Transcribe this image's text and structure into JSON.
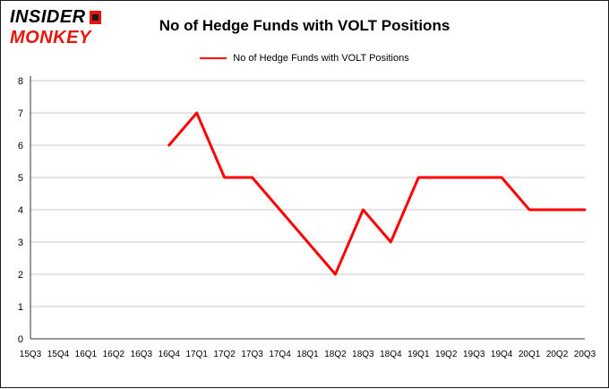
{
  "logo": {
    "line1": "INSIDER",
    "line2": "MONKEY"
  },
  "colors": {
    "logo_red": "#e8140c",
    "series_red": "#ff0000",
    "gridline": "#c9c9c9",
    "axis": "#333333",
    "text": "#000000"
  },
  "chart_data": {
    "type": "line",
    "title": "No of Hedge Funds with VOLT Positions",
    "xlabel": "",
    "ylabel": "",
    "ylim": [
      0,
      8
    ],
    "y_ticks": [
      0,
      1,
      2,
      3,
      4,
      5,
      6,
      7,
      8
    ],
    "grid": "horizontal",
    "legend_position": "top-center",
    "categories": [
      "15Q3",
      "15Q4",
      "16Q1",
      "16Q2",
      "16Q3",
      "16Q4",
      "17Q1",
      "17Q2",
      "17Q3",
      "17Q4",
      "18Q1",
      "18Q2",
      "18Q3",
      "18Q4",
      "19Q1",
      "19Q2",
      "19Q3",
      "19Q4",
      "20Q1",
      "20Q2",
      "20Q3"
    ],
    "series": [
      {
        "name": "No of Hedge Funds with VOLT Positions",
        "color": "#ff0000",
        "values": [
          null,
          null,
          null,
          null,
          null,
          6,
          7,
          5,
          5,
          4,
          3,
          2,
          4,
          3,
          5,
          5,
          5,
          5,
          4,
          4,
          4
        ]
      }
    ]
  }
}
